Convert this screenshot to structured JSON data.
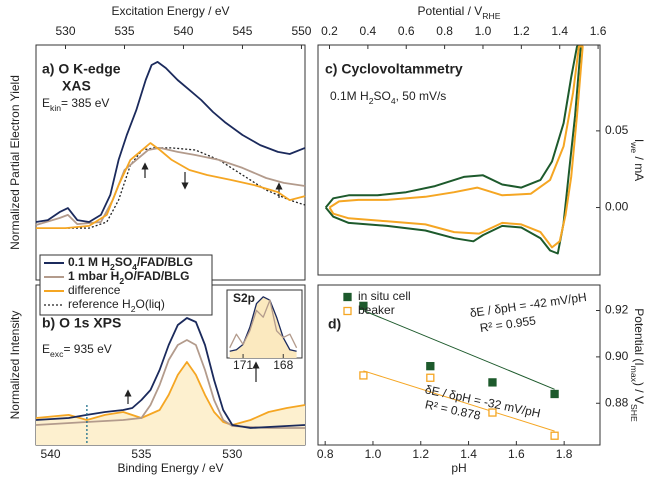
{
  "chart_data": [
    {
      "type": "line",
      "title": [
        "a) O K-edge",
        "XAS"
      ],
      "annotation": [
        "E",
        "kin",
        "= 385 eV"
      ],
      "xlabel": "Excitation Energy / eV",
      "ylabel": "Normalized Partial Electron Yield",
      "xlim": [
        527.5,
        550.3
      ],
      "xticks": [
        530,
        535,
        540,
        545,
        550
      ],
      "ylim": [
        0,
        1
      ],
      "series": [
        {
          "name": [
            "0.1 M H",
            "2",
            "SO",
            "4",
            "/FAD/BLG"
          ],
          "color": "#1b2a5c",
          "x": [
            527.5,
            528.5,
            529.5,
            530.2,
            531,
            532,
            533,
            533.8,
            534.5,
            535.2,
            536,
            536.8,
            537.3,
            537.8,
            538.5,
            539.5,
            540.5,
            541.5,
            542.5,
            543.5,
            545,
            546.5,
            548,
            549,
            550.3
          ],
          "values": [
            0.247,
            0.255,
            0.289,
            0.306,
            0.255,
            0.247,
            0.277,
            0.362,
            0.511,
            0.617,
            0.723,
            0.851,
            0.915,
            0.928,
            0.902,
            0.851,
            0.809,
            0.766,
            0.715,
            0.672,
            0.617,
            0.574,
            0.545,
            0.536,
            0.562
          ]
        },
        {
          "name": [
            "1 mbar H",
            "2",
            "O/FAD/BLG"
          ],
          "color": "#b39b8c",
          "x": [
            527.5,
            529.5,
            530.2,
            531,
            533,
            534,
            535,
            536,
            537,
            538,
            539.5,
            541,
            543,
            545,
            547,
            548.5,
            550.3
          ],
          "values": [
            0.234,
            0.264,
            0.277,
            0.238,
            0.247,
            0.34,
            0.468,
            0.511,
            0.553,
            0.562,
            0.545,
            0.532,
            0.511,
            0.477,
            0.434,
            0.413,
            0.4
          ]
        },
        {
          "name": [
            "difference"
          ],
          "color": "#f5a623",
          "x": [
            527.5,
            530,
            532,
            533.5,
            534.5,
            535.5,
            536.5,
            537.2,
            538,
            539,
            540.5,
            542,
            544,
            546,
            548,
            549,
            550.3
          ],
          "values": [
            0.221,
            0.221,
            0.23,
            0.277,
            0.404,
            0.511,
            0.553,
            0.583,
            0.553,
            0.511,
            0.468,
            0.447,
            0.426,
            0.404,
            0.374,
            0.34,
            0.357
          ]
        },
        {
          "name": [
            "reference H",
            "2",
            "O(liq)"
          ],
          "color": "#222222",
          "dash": true,
          "x": [
            527.5,
            532,
            533.5,
            534.5,
            535.5,
            536.5,
            537.5,
            539,
            541,
            543,
            545,
            547,
            549,
            550.3
          ],
          "values": [
            0.221,
            0.221,
            0.247,
            0.34,
            0.489,
            0.553,
            0.562,
            0.562,
            0.553,
            0.511,
            0.447,
            0.383,
            0.34,
            0.319
          ]
        }
      ]
    },
    {
      "type": "line",
      "title": [
        "b) O 1s XPS"
      ],
      "annotation": [
        "E",
        "exc",
        "= 935 eV"
      ],
      "xlabel": "Binding Energy / eV",
      "ylabel": "Normalized Intensity",
      "xlim": [
        540.8,
        526
      ],
      "xticks": [
        540,
        535,
        530
      ],
      "ylim": [
        0,
        1
      ],
      "marker_x": 538,
      "marker_color": "#1f6f8b",
      "series": [
        {
          "color": "#1b2a5c",
          "x": [
            540.8,
            539,
            538,
            537,
            536,
            535.5,
            535,
            534.5,
            534,
            533.5,
            533,
            532.5,
            532,
            531.5,
            531,
            530.5,
            530,
            529,
            527,
            526
          ],
          "values": [
            0.156,
            0.169,
            0.188,
            0.206,
            0.219,
            0.231,
            0.281,
            0.344,
            0.469,
            0.625,
            0.75,
            0.794,
            0.769,
            0.625,
            0.406,
            0.219,
            0.125,
            0.106,
            0.119,
            0.125
          ]
        },
        {
          "color": "#b39b8c",
          "x": [
            540.8,
            538,
            536,
            535,
            534.5,
            534,
            533.5,
            533,
            532.5,
            532,
            531.5,
            531,
            530.5,
            530,
            528,
            526
          ],
          "values": [
            0.125,
            0.144,
            0.156,
            0.169,
            0.25,
            0.375,
            0.531,
            0.625,
            0.656,
            0.625,
            0.469,
            0.281,
            0.156,
            0.119,
            0.106,
            0.106
          ]
        },
        {
          "color": "#f5a623",
          "fill": "#fdf0cf",
          "x": [
            540.8,
            539,
            538,
            537,
            536,
            535,
            534,
            533.5,
            533,
            532.5,
            532,
            531.5,
            531,
            530.5,
            530,
            529,
            528,
            527,
            526
          ],
          "values": [
            0.169,
            0.188,
            0.156,
            0.188,
            0.206,
            0.169,
            0.219,
            0.313,
            0.438,
            0.519,
            0.438,
            0.313,
            0.206,
            0.144,
            0.125,
            0.156,
            0.206,
            0.231,
            0.25
          ]
        }
      ],
      "inset": {
        "type": "line",
        "title": "S2p",
        "xlim": [
          172.2,
          166.6
        ],
        "xticks": [
          171,
          168
        ],
        "ylim": [
          0,
          1
        ],
        "series": [
          {
            "color": "#1b2a5c",
            "fill": "#fbe9bf",
            "x": [
              172,
              171.5,
              171,
              170.5,
              170,
              169.5,
              169,
              168.5,
              168,
              167.5,
              167
            ],
            "values": [
              0.1,
              0.12,
              0.2,
              0.45,
              0.8,
              0.9,
              0.85,
              0.6,
              0.3,
              0.12,
              0.1
            ]
          },
          {
            "color": "#b39b8c",
            "x": [
              172,
              171.5,
              171,
              170.5,
              170,
              169.5,
              169,
              168.5,
              168,
              167.5,
              167
            ],
            "values": [
              0.15,
              0.35,
              0.2,
              0.4,
              0.7,
              0.6,
              0.85,
              0.4,
              0.3,
              0.35,
              0.15
            ]
          }
        ]
      }
    },
    {
      "type": "line",
      "title": "c) Cyclovoltammetry",
      "annotation": [
        "0.1M H",
        "2",
        "SO",
        "4",
        ", 50 mV/s"
      ],
      "xlabel": [
        "Potential / V",
        "RHE"
      ],
      "ylabel": [
        "I",
        "we",
        " / mA"
      ],
      "xlim": [
        0.14,
        1.61
      ],
      "xticks": [
        0.2,
        0.4,
        0.6,
        0.8,
        {
          "value": 1,
          "label": "1.0"
        },
        1.2,
        1.4,
        1.6
      ],
      "ylim": [
        -0.044,
        0.106
      ],
      "yticks": [
        {
          "value": 0,
          "label": "0.00"
        },
        0.05
      ],
      "series": [
        {
          "color": "#1d5a2c",
          "x": [
            0.18,
            0.22,
            0.3,
            0.45,
            0.6,
            0.75,
            0.9,
            1.0,
            1.1,
            1.2,
            1.3,
            1.36,
            1.42,
            1.46,
            1.49,
            1.51,
            1.48,
            1.45,
            1.42,
            1.39,
            1.35,
            1.3,
            1.2,
            1.1,
            1.0,
            0.95,
            0.85,
            0.7,
            0.5,
            0.3,
            0.22,
            0.18
          ],
          "values": [
            0.0,
            0.006,
            0.008,
            0.008,
            0.01,
            0.014,
            0.02,
            0.021,
            0.015,
            0.013,
            0.018,
            0.03,
            0.055,
            0.085,
            0.105,
            0.105,
            0.06,
            0.025,
            -0.01,
            -0.03,
            -0.028,
            -0.02,
            -0.013,
            -0.012,
            -0.018,
            -0.022,
            -0.02,
            -0.015,
            -0.012,
            -0.01,
            -0.006,
            0.0
          ]
        },
        {
          "color": "#f5a623",
          "x": [
            0.2,
            0.25,
            0.35,
            0.5,
            0.7,
            0.85,
            0.97,
            1.1,
            1.25,
            1.35,
            1.42,
            1.47,
            1.5,
            1.52,
            1.49,
            1.46,
            1.43,
            1.4,
            1.36,
            1.3,
            1.2,
            1.1,
            0.98,
            0.85,
            0.7,
            0.5,
            0.3,
            0.22,
            0.2
          ],
          "values": [
            0.0,
            0.004,
            0.005,
            0.005,
            0.007,
            0.01,
            0.013,
            0.008,
            0.009,
            0.018,
            0.04,
            0.075,
            0.105,
            0.105,
            0.06,
            0.02,
            -0.005,
            -0.022,
            -0.026,
            -0.016,
            -0.011,
            -0.01,
            -0.017,
            -0.016,
            -0.011,
            -0.009,
            -0.007,
            -0.004,
            0.0
          ]
        }
      ]
    },
    {
      "type": "scatter",
      "title": "d)",
      "xlabel": "pH",
      "ylabel": [
        "Potential (I",
        "max",
        ") / V",
        "SHE"
      ],
      "xlim": [
        0.77,
        1.95
      ],
      "xticks": [
        0.8,
        {
          "value": 1,
          "label": "1.0"
        },
        1.2,
        1.4,
        1.6,
        1.8
      ],
      "ylim": [
        0.862,
        0.931
      ],
      "yticks": [
        0.88,
        {
          "value": 0.9,
          "label": "0.90"
        },
        0.92
      ],
      "annotations": [
        "δE / δpH = -42 mV/pH",
        "R² = 0.955",
        "δE / δpH = -32 mV/pH",
        "R² = 0.878"
      ],
      "series": [
        {
          "name": "in situ cell",
          "color": "#1d5a2c",
          "filled": true,
          "x": [
            0.96,
            1.24,
            1.5,
            1.76
          ],
          "values": [
            0.922,
            0.896,
            0.889,
            0.884
          ],
          "fit": {
            "x": [
              0.96,
              1.76
            ],
            "values": [
              0.92,
              0.886
            ]
          }
        },
        {
          "name": "beaker",
          "color": "#f5a623",
          "filled": false,
          "x": [
            0.96,
            1.24,
            1.5,
            1.76
          ],
          "values": [
            0.892,
            0.891,
            0.876,
            0.866
          ],
          "fit": {
            "x": [
              0.96,
              1.76
            ],
            "values": [
              0.894,
              0.868
            ]
          }
        }
      ]
    }
  ]
}
